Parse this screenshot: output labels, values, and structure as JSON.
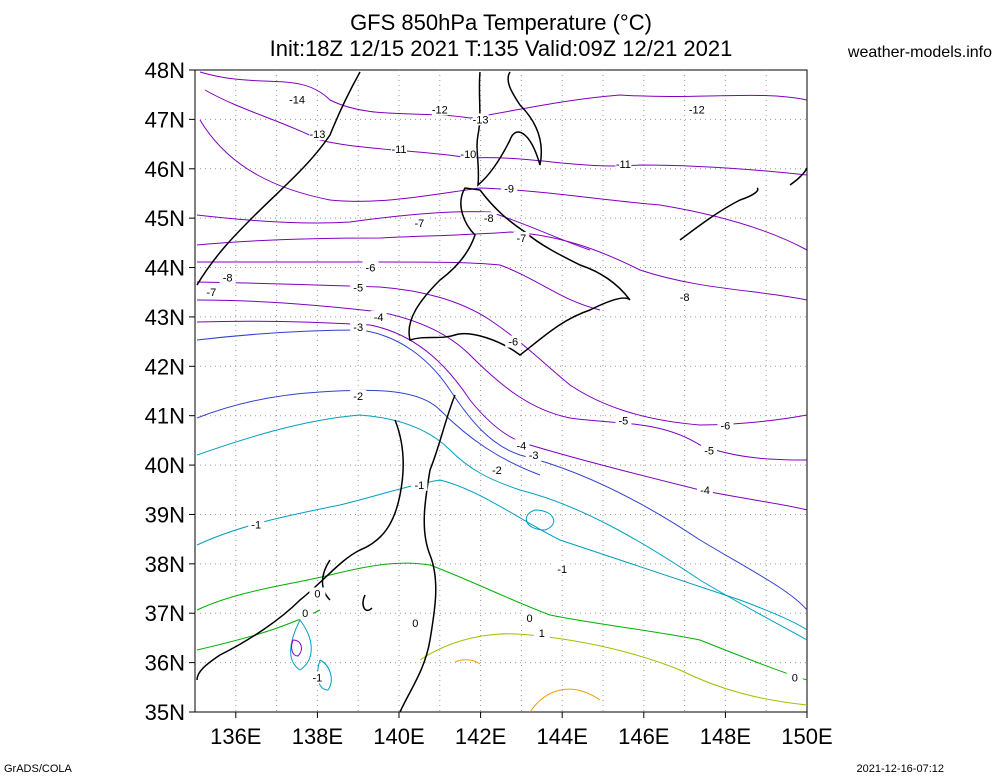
{
  "header": {
    "title_line1": "GFS 850hPa Temperature (°C)",
    "title_line2": "Init:18Z 12/15 2021 T:135 Valid:09Z 12/21 2021",
    "site": "weather-models.info"
  },
  "footer": {
    "left": "GrADS/COLA",
    "right": "2021-12-16-07:12"
  },
  "map": {
    "lat_labels": [
      "48N",
      "47N",
      "46N",
      "45N",
      "44N",
      "43N",
      "42N",
      "41N",
      "40N",
      "39N",
      "38N",
      "37N",
      "36N",
      "35N"
    ],
    "lon_labels": [
      "136E",
      "138E",
      "140E",
      "142E",
      "144E",
      "146E",
      "148E",
      "150E"
    ],
    "lat_range": [
      35,
      48
    ],
    "lon_range": [
      135,
      150
    ],
    "contour_labels": [
      {
        "text": "-14",
        "lon": 137.5,
        "lat": 47.4
      },
      {
        "text": "-13",
        "lon": 138.0,
        "lat": 46.7
      },
      {
        "text": "-12",
        "lon": 141.0,
        "lat": 47.2
      },
      {
        "text": "-13",
        "lon": 142.0,
        "lat": 47.0
      },
      {
        "text": "-12",
        "lon": 147.3,
        "lat": 47.2
      },
      {
        "text": "-11",
        "lon": 140.0,
        "lat": 46.4
      },
      {
        "text": "-10",
        "lon": 141.7,
        "lat": 46.3
      },
      {
        "text": "-11",
        "lon": 145.5,
        "lat": 46.1
      },
      {
        "text": "-9",
        "lon": 142.7,
        "lat": 45.6
      },
      {
        "text": "-8",
        "lon": 142.2,
        "lat": 45.0
      },
      {
        "text": "-7",
        "lon": 140.5,
        "lat": 44.9
      },
      {
        "text": "-7",
        "lon": 143.0,
        "lat": 44.6
      },
      {
        "text": "-8",
        "lon": 135.8,
        "lat": 43.8
      },
      {
        "text": "-7",
        "lon": 135.4,
        "lat": 43.5
      },
      {
        "text": "-6",
        "lon": 139.3,
        "lat": 44.0
      },
      {
        "text": "-8",
        "lon": 147.0,
        "lat": 43.4
      },
      {
        "text": "-5",
        "lon": 139.0,
        "lat": 43.6
      },
      {
        "text": "-4",
        "lon": 139.5,
        "lat": 43.0
      },
      {
        "text": "-3",
        "lon": 139.0,
        "lat": 42.8
      },
      {
        "text": "-6",
        "lon": 142.8,
        "lat": 42.5
      },
      {
        "text": "-2",
        "lon": 139.0,
        "lat": 41.4
      },
      {
        "text": "-5",
        "lon": 145.5,
        "lat": 40.9
      },
      {
        "text": "-6",
        "lon": 148.0,
        "lat": 40.8
      },
      {
        "text": "-4",
        "lon": 143.0,
        "lat": 40.4
      },
      {
        "text": "-3",
        "lon": 143.3,
        "lat": 40.2
      },
      {
        "text": "-5",
        "lon": 147.6,
        "lat": 40.3
      },
      {
        "text": "-2",
        "lon": 142.4,
        "lat": 39.9
      },
      {
        "text": "-1",
        "lon": 140.5,
        "lat": 39.6
      },
      {
        "text": "-4",
        "lon": 147.5,
        "lat": 39.5
      },
      {
        "text": "-1",
        "lon": 136.5,
        "lat": 38.8
      },
      {
        "text": "-1",
        "lon": 144.0,
        "lat": 37.9
      },
      {
        "text": "0",
        "lon": 138.0,
        "lat": 37.4
      },
      {
        "text": "0",
        "lon": 137.7,
        "lat": 37.0
      },
      {
        "text": "0",
        "lon": 140.4,
        "lat": 36.8
      },
      {
        "text": "0",
        "lon": 143.2,
        "lat": 36.9
      },
      {
        "text": "1",
        "lon": 143.5,
        "lat": 36.6
      },
      {
        "text": "-1",
        "lon": 138.0,
        "lat": 35.7
      },
      {
        "text": "0",
        "lon": 149.7,
        "lat": 35.7
      }
    ]
  },
  "colors": {
    "contour_cold": "#8000c0",
    "contour_mid": "#3040d0",
    "contour_cool": "#00a0c0",
    "contour_zero": "#00b000",
    "contour_warm": "#a0c000",
    "contour_orange": "#f0a000",
    "coast": "#000000"
  }
}
